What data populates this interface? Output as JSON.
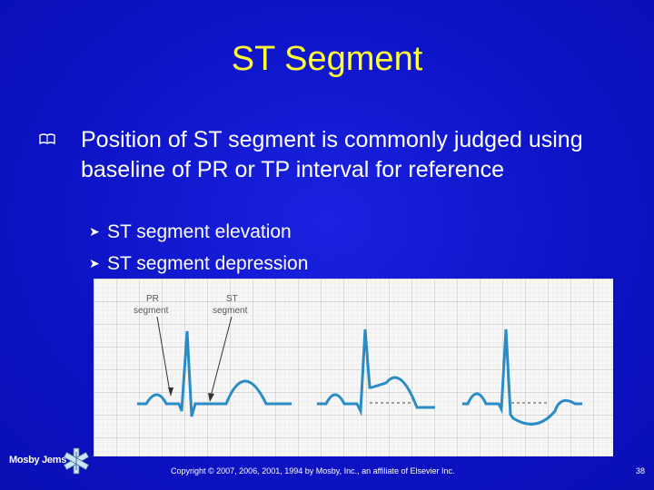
{
  "slide": {
    "title": "ST Segment",
    "main_text": "Position of ST segment is commonly judged using baseline of PR or TP interval for reference",
    "sub_bullets": [
      "ST segment elevation",
      "ST segment depression"
    ],
    "bullet_icon": "book-bullet-icon",
    "sub_bullet_icon": "arrow-right-icon"
  },
  "figure": {
    "label_pr_line1": "PR",
    "label_pr_line2": "segment",
    "label_st_line1": "ST",
    "label_st_line2": "segment"
  },
  "footer": {
    "logo_text": "Mosby Jems",
    "copyright": "Copyright © 2007, 2006, 2001, 1994 by Mosby, Inc., an affiliate of Elsevier Inc.",
    "page_number": "38"
  },
  "colors": {
    "background": "#0c12c4",
    "title": "#ffff33",
    "text": "#ffffff",
    "ecg_trace": "#2a8cc4",
    "grid": "#c7c7c7"
  }
}
